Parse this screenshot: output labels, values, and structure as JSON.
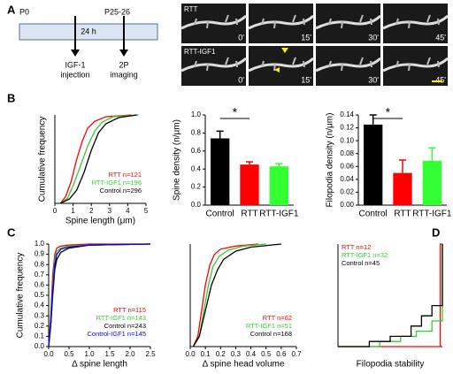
{
  "panel_labels": [
    "A",
    "B",
    "C",
    "D"
  ],
  "timeline": {
    "start": "P0",
    "treatment_day": "P25-26",
    "duration": "24 h",
    "injection": [
      "IGF-1",
      "injection"
    ],
    "imaging": [
      "2P",
      "imaging"
    ]
  },
  "micrographs": {
    "rows": [
      "RTT",
      "RTT-IGF1"
    ],
    "times": [
      "0'",
      "15'",
      "30'",
      "45'"
    ]
  },
  "chart_data": [
    {
      "type": "line",
      "xlabel": "Spine length (μm)",
      "ylabel": "Cumulative frequency",
      "xlim": [
        0,
        5
      ],
      "xticks": [
        0,
        1,
        2,
        3,
        4,
        5
      ],
      "ylim": [
        0,
        1
      ],
      "legend": "lower right",
      "series": [
        {
          "name": "RTT n=121",
          "color": "#ff0000",
          "x": [
            0.3,
            0.6,
            0.9,
            1.2,
            1.5,
            1.8,
            2.2,
            2.8,
            4.2
          ],
          "values": [
            0,
            0.08,
            0.25,
            0.5,
            0.7,
            0.85,
            0.93,
            0.98,
            1
          ]
        },
        {
          "name": "RTT-IGF1 n=196",
          "color": "#33cc33",
          "x": [
            0.3,
            0.7,
            1.0,
            1.4,
            1.8,
            2.2,
            2.6,
            3.2,
            4.6
          ],
          "values": [
            0,
            0.06,
            0.2,
            0.42,
            0.65,
            0.82,
            0.92,
            0.98,
            1
          ]
        },
        {
          "name": "Control n=296",
          "color": "#000000",
          "x": [
            0.3,
            0.8,
            1.2,
            1.6,
            2.0,
            2.4,
            2.8,
            3.5,
            4.5
          ],
          "values": [
            0,
            0.05,
            0.15,
            0.35,
            0.6,
            0.8,
            0.9,
            0.97,
            1
          ]
        }
      ]
    },
    {
      "type": "bar",
      "ylabel": "Spine density (n/μm)",
      "categories": [
        "Control",
        "RTT",
        "RTT-IGF1"
      ],
      "values": [
        0.74,
        0.45,
        0.43
      ],
      "errors": [
        0.08,
        0.03,
        0.03
      ],
      "colors": [
        "#000000",
        "#ff0000",
        "#33ff33"
      ],
      "ylim": [
        0,
        1
      ],
      "yticks": [
        {
          "value": 0,
          "label": "0.0"
        },
        {
          "value": 0.2,
          "label": "0.2"
        },
        {
          "value": 0.4,
          "label": "0.4"
        },
        {
          "value": 0.6,
          "label": "0.6"
        },
        {
          "value": 0.8,
          "label": "0.8"
        },
        {
          "value": 1,
          "label": "1.0"
        }
      ],
      "annotation": "*"
    },
    {
      "type": "bar",
      "ylabel": "Filopodia density (n/μm)",
      "categories": [
        "Control",
        "RTT",
        "RTT-IGF1"
      ],
      "values": [
        0.125,
        0.05,
        0.069
      ],
      "errors": [
        0.015,
        0.02,
        0.02
      ],
      "colors": [
        "#000000",
        "#ff0000",
        "#33ff33"
      ],
      "ylim": [
        0,
        0.14
      ],
      "yticks": [
        {
          "value": 0,
          "label": "0.00"
        },
        {
          "value": 0.02,
          "label": "0.02"
        },
        {
          "value": 0.04,
          "label": "0.04"
        },
        {
          "value": 0.06,
          "label": "0.06"
        },
        {
          "value": 0.08,
          "label": "0.08"
        },
        {
          "value": 0.1,
          "label": "0.10"
        },
        {
          "value": 0.12,
          "label": "0.12"
        },
        {
          "value": 0.14,
          "label": "0.14"
        }
      ],
      "annotation": "*"
    },
    {
      "type": "line",
      "xlabel": "Δ spine length",
      "ylabel": "Cumulative frequency",
      "xlim": [
        0,
        2.5
      ],
      "xticks": [
        {
          "value": 0,
          "label": "0.0"
        },
        {
          "value": 0.5,
          "label": "0.5"
        },
        {
          "value": 1,
          "label": "1.0"
        },
        {
          "value": 1.5,
          "label": "1.5"
        },
        {
          "value": 2,
          "label": "2.0"
        },
        {
          "value": 2.5,
          "label": "2.5"
        }
      ],
      "ylim": [
        0,
        1
      ],
      "yticks": [
        {
          "value": 0,
          "label": "0.0"
        },
        0.1,
        0.2,
        0.3,
        0.4,
        0.5,
        0.6,
        0.7,
        0.8,
        0.9,
        {
          "value": 1,
          "label": "1.0"
        }
      ],
      "legend": "lower right",
      "series": [
        {
          "name": "RTT n=115",
          "color": "#ff0000",
          "x": [
            0,
            0.05,
            0.1,
            0.15,
            0.2,
            0.3,
            0.5,
            1.0,
            2.5
          ],
          "values": [
            0,
            0.3,
            0.7,
            0.9,
            0.96,
            0.98,
            0.99,
            1,
            1
          ]
        },
        {
          "name": "RTT-IGF1 n=143",
          "color": "#33cc33",
          "x": [
            0,
            0.05,
            0.1,
            0.15,
            0.2,
            0.3,
            0.5,
            1.0,
            2.5
          ],
          "values": [
            0,
            0.25,
            0.6,
            0.85,
            0.93,
            0.96,
            0.98,
            0.99,
            1
          ]
        },
        {
          "name": "Control n=243",
          "color": "#000000",
          "x": [
            0,
            0.05,
            0.1,
            0.15,
            0.2,
            0.3,
            0.5,
            1.0,
            2.5
          ],
          "values": [
            0,
            0.2,
            0.5,
            0.75,
            0.85,
            0.92,
            0.96,
            0.99,
            1
          ]
        },
        {
          "name": "Control-IGF1 n=145",
          "color": "#0000ff",
          "x": [
            0,
            0.05,
            0.1,
            0.15,
            0.2,
            0.3,
            0.5,
            1.0,
            2.5
          ],
          "values": [
            0,
            0.2,
            0.55,
            0.8,
            0.9,
            0.95,
            0.97,
            0.99,
            1
          ]
        }
      ]
    },
    {
      "type": "line",
      "xlabel": "Δ spine head volume",
      "xlim": [
        0,
        0.7
      ],
      "xticks": [
        {
          "value": 0,
          "label": "0.0"
        },
        0.1,
        0.2,
        0.3,
        0.4,
        0.5,
        0.6,
        0.7
      ],
      "ylim": [
        0,
        1
      ],
      "legend": "lower right",
      "series": [
        {
          "name": "RTT n=62",
          "color": "#ff0000",
          "x": [
            0.02,
            0.05,
            0.08,
            0.1,
            0.13,
            0.16,
            0.2,
            0.3,
            0.45
          ],
          "values": [
            0,
            0.1,
            0.4,
            0.6,
            0.8,
            0.9,
            0.95,
            0.98,
            1
          ]
        },
        {
          "name": "RTT-IGF1 n=51",
          "color": "#33cc33",
          "x": [
            0.02,
            0.06,
            0.09,
            0.12,
            0.15,
            0.19,
            0.25,
            0.35,
            0.5
          ],
          "values": [
            0,
            0.1,
            0.35,
            0.6,
            0.78,
            0.88,
            0.94,
            0.98,
            1
          ]
        },
        {
          "name": "Control n=168",
          "color": "#000000",
          "x": [
            0.02,
            0.06,
            0.1,
            0.14,
            0.18,
            0.22,
            0.3,
            0.4,
            0.6
          ],
          "values": [
            0,
            0.1,
            0.35,
            0.6,
            0.75,
            0.85,
            0.93,
            0.97,
            1
          ]
        }
      ]
    },
    {
      "type": "line",
      "xlabel": "Filopodia stability",
      "xlim": [
        0,
        1
      ],
      "ylim": [
        0,
        1
      ],
      "legend": "upper left",
      "series": [
        {
          "name": "RTT n=12",
          "color": "#ff0000",
          "x": [
            0,
            0.98,
            0.98,
            1
          ],
          "values": [
            0,
            0,
            1,
            1
          ]
        },
        {
          "name": "RTT-IGF1 n=32",
          "color": "#33cc33",
          "x": [
            0,
            0.4,
            0.4,
            0.6,
            0.6,
            0.75,
            0.75,
            0.9,
            0.9,
            1,
            1
          ],
          "values": [
            0,
            0,
            0.05,
            0.05,
            0.1,
            0.1,
            0.15,
            0.15,
            0.25,
            0.25,
            1
          ]
        },
        {
          "name": "Control n=45",
          "color": "#000000",
          "x": [
            0,
            0.3,
            0.3,
            0.5,
            0.5,
            0.7,
            0.7,
            0.8,
            0.8,
            0.9,
            0.9,
            1,
            1
          ],
          "values": [
            0,
            0,
            0.05,
            0.05,
            0.1,
            0.1,
            0.2,
            0.2,
            0.3,
            0.3,
            0.4,
            0.4,
            1
          ]
        }
      ]
    }
  ]
}
